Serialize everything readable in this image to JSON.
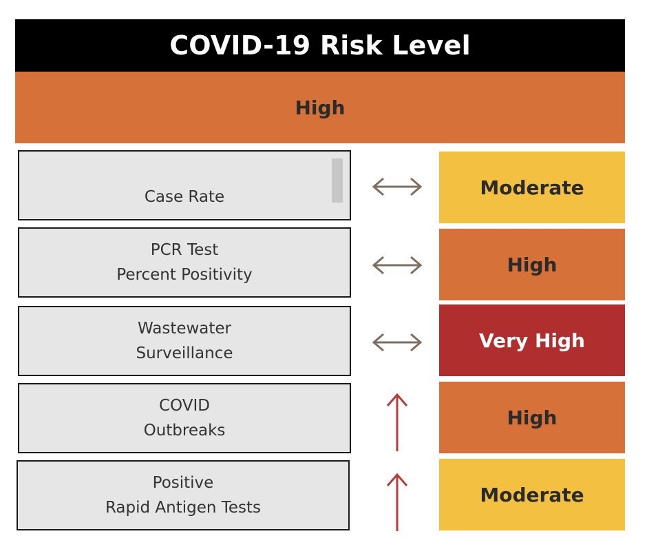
{
  "header": {
    "title": "COVID-19 Risk Level"
  },
  "overall": {
    "level": "High",
    "color": "#d67139"
  },
  "metrics": [
    {
      "lines": [
        "Case Rate"
      ],
      "trend": "steady",
      "trend_icon": "left-right-arrow-icon",
      "level": "Moderate",
      "level_color": "#f3c041"
    },
    {
      "lines": [
        "PCR Test",
        "Percent Positivity"
      ],
      "trend": "steady",
      "trend_icon": "left-right-arrow-icon",
      "level": "High",
      "level_color": "#d67139"
    },
    {
      "lines": [
        "Wastewater",
        "Surveillance"
      ],
      "trend": "steady",
      "trend_icon": "left-right-arrow-icon",
      "level": "Very High",
      "level_color": "#b02e2e"
    },
    {
      "lines": [
        "COVID",
        "Outbreaks"
      ],
      "trend": "increasing",
      "trend_icon": "up-arrow-icon",
      "level": "High",
      "level_color": "#d67139"
    },
    {
      "lines": [
        "Positive",
        "Rapid Antigen Tests"
      ],
      "trend": "increasing",
      "trend_icon": "up-arrow-icon",
      "level": "Moderate",
      "level_color": "#f3c041"
    }
  ],
  "colors": {
    "steady_arrow": "#7d6e62",
    "up_arrow": "#b43c3c"
  }
}
